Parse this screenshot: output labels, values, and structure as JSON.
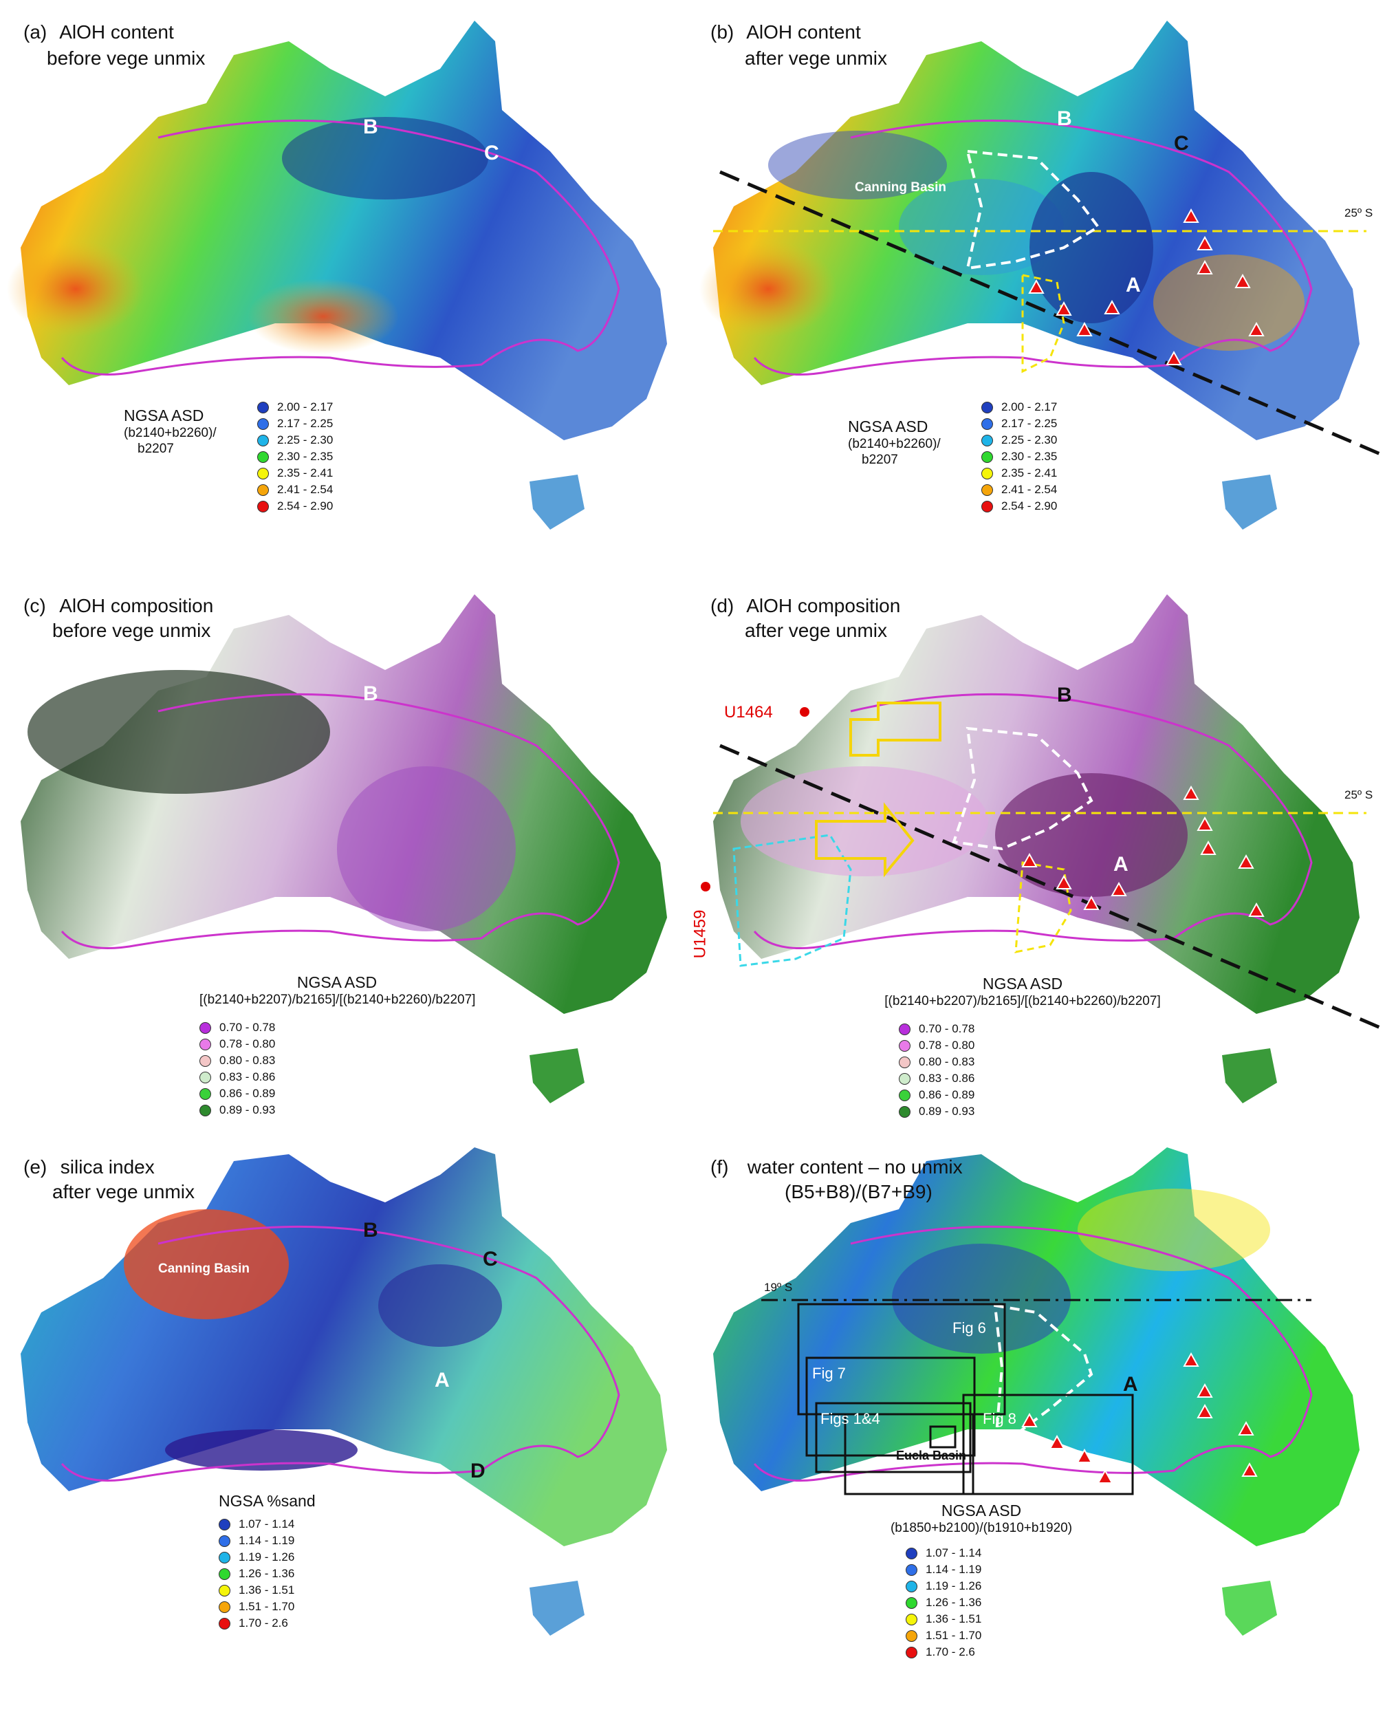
{
  "panels": {
    "a": {
      "label": "(a)",
      "title1": "AlOH content",
      "title2": "before vege unmix",
      "legend_title": "NGSA ASD",
      "legend_sub1": "(b2140+b2260)/",
      "legend_sub2": "b2207",
      "legend": [
        "2.00 - 2.17",
        "2.17 - 2.25",
        "2.25 - 2.30",
        "2.30 - 2.35",
        "2.35 - 2.41",
        "2.41 - 2.54",
        "2.54 - 2.90"
      ],
      "letters": [
        "B",
        "C"
      ]
    },
    "b": {
      "label": "(b)",
      "title1": "AlOH content",
      "title2": "after vege unmix",
      "legend_title": "NGSA ASD",
      "legend_sub1": "(b2140+b2260)/",
      "legend_sub2": "b2207",
      "legend": [
        "2.00 - 2.17",
        "2.17 - 2.25",
        "2.25 - 2.30",
        "2.30 - 2.35",
        "2.35 - 2.41",
        "2.41 - 2.54",
        "2.54 - 2.90"
      ],
      "letters": [
        "B",
        "C",
        "A"
      ],
      "basin": "Canning Basin",
      "lat": "25º S"
    },
    "c": {
      "label": "(c)",
      "title1": "AlOH composition",
      "title2": "before vege unmix",
      "legend_title": "NGSA ASD",
      "legend_sub1": "[(b2140+b2207)/b2165]/[(b2140+b2260)/b2207]",
      "legend": [
        "0.70 - 0.78",
        "0.78 - 0.80",
        "0.80 - 0.83",
        "0.83 - 0.86",
        "0.86 - 0.89",
        "0.89 - 0.93"
      ],
      "letters": [
        "B"
      ]
    },
    "d": {
      "label": "(d)",
      "title1": "AlOH composition",
      "title2": "after vege unmix",
      "legend_title": "NGSA ASD",
      "legend_sub1": "[(b2140+b2207)/b2165]/[(b2140+b2260)/b2207]",
      "legend": [
        "0.70 - 0.78",
        "0.78 - 0.80",
        "0.80 - 0.83",
        "0.83 - 0.86",
        "0.86 - 0.89",
        "0.89 - 0.93"
      ],
      "letters": [
        "B",
        "A"
      ],
      "site1": "U1464",
      "site2": "U1459",
      "lat": "25º S"
    },
    "e": {
      "label": "(e)",
      "title1": "silica index",
      "title2": "after vege unmix",
      "legend_title": "NGSA %sand",
      "legend": [
        "1.07 - 1.14",
        "1.14 - 1.19",
        "1.19 - 1.26",
        "1.26 - 1.36",
        "1.36 - 1.51",
        "1.51 - 1.70",
        "1.70 - 2.6"
      ],
      "letters": [
        "B",
        "C",
        "A",
        "D"
      ],
      "basin": "Canning Basin"
    },
    "f": {
      "label": "(f)",
      "title1": "water content – no unmix",
      "title2": "(B5+B8)/(B7+B9)",
      "legend_title": "NGSA ASD",
      "legend_sub1": "(b1850+b2100)/(b1910+b1920)",
      "legend": [
        "1.07 - 1.14",
        "1.14 - 1.19",
        "1.19 - 1.26",
        "1.26 - 1.36",
        "1.36 - 1.51",
        "1.51 - 1.70",
        "1.70 - 2.6"
      ],
      "letters": [
        "A"
      ],
      "lat": "19º S",
      "boxes": [
        "Fig 6",
        "Fig 7",
        "Figs 1&4",
        "Fig 8"
      ],
      "basin": "Eucla Basin"
    }
  },
  "colors": {
    "aloh_content": [
      "#1f3fbf",
      "#2f6fe8",
      "#1fb4e8",
      "#2fd82f",
      "#f5f50a",
      "#f5a50a",
      "#e81010"
    ],
    "aloh_comp": [
      "#b82fdc",
      "#e87ae8",
      "#f3c6c6",
      "#cfeccc",
      "#3ad13a",
      "#2e8a2e"
    ],
    "silica": [
      "#1f3fbf",
      "#2f6fe8",
      "#1fb4e8",
      "#2fd82f",
      "#f5f50a",
      "#f5a50a",
      "#e81010"
    ],
    "boundary": "#cc33cc",
    "triangle": "#e81010"
  }
}
